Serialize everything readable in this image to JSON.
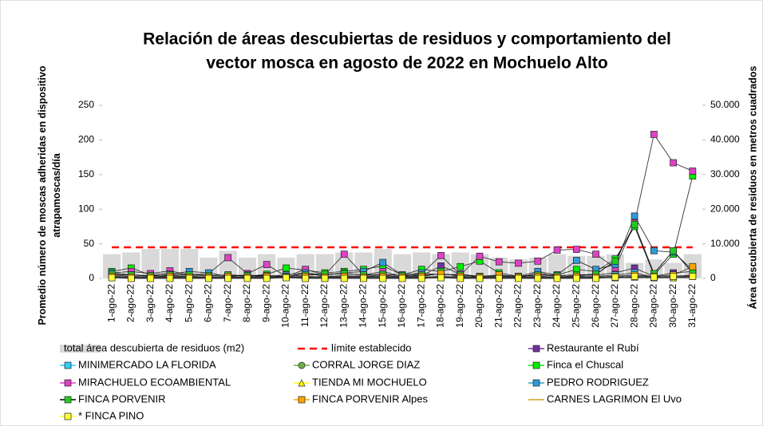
{
  "chart_data": {
    "type": "bar",
    "title": "Relación de áreas descubiertas de residuos y comportamiento del vector mosca en agosto  de 2022 en Mochuelo Alto",
    "y_label": "Promedio número de moscas adheridas en dispositivo atrapamoscas/día",
    "y2_label": "Área descubierta de residuos en metros cuadrados",
    "categories": [
      "1-ago-22",
      "2-ago-22",
      "3-ago-22",
      "4-ago-22",
      "5-ago-22",
      "6-ago-22",
      "7-ago-22",
      "8-ago-22",
      "9-ago-22",
      "10-ago-22",
      "11-ago-22",
      "12-ago-22",
      "13-ago-22",
      "14-ago-22",
      "15-ago-22",
      "16-ago-22",
      "17-ago-22",
      "18-ago-22",
      "19-ago-22",
      "20-ago-22",
      "21-ago-22",
      "22-ago-22",
      "23-ago-22",
      "24-ago-22",
      "25-ago-22",
      "26-ago-22",
      "27-ago-22",
      "28-ago-22",
      "29-ago-22",
      "30-ago-22",
      "31-ago-22"
    ],
    "ylim": [
      0,
      250
    ],
    "yticks": [
      0,
      50,
      100,
      150,
      200,
      250
    ],
    "y2lim": [
      0,
      50000
    ],
    "y2ticks": [
      0,
      {
        "value": 10000,
        "label": "10.000"
      },
      {
        "value": 20000,
        "label": "20.000"
      },
      {
        "value": 30000,
        "label": "30.000"
      },
      {
        "value": 40000,
        "label": "40.000"
      },
      {
        "value": 50000,
        "label": "50.000"
      }
    ],
    "series": [
      {
        "name": "total área descubierta de residuos (m2)",
        "type": "bar",
        "axis": "y2",
        "color": "#d9d9d9",
        "values": [
          7000,
          7500,
          8500,
          8500,
          8500,
          6000,
          8000,
          6000,
          7000,
          6000,
          7000,
          7000,
          7500,
          7500,
          8500,
          7000,
          7500,
          7000,
          7500,
          7000,
          6000,
          5500,
          6000,
          7000,
          6500,
          6500,
          7000,
          4500,
          5500,
          4500,
          7000
        ]
      },
      {
        "name": "límite establecido",
        "type": "line",
        "dash": true,
        "color": "#ff0000",
        "marker": "none",
        "values": [
          45,
          45,
          45,
          45,
          45,
          45,
          45,
          45,
          45,
          45,
          45,
          45,
          45,
          45,
          45,
          45,
          45,
          45,
          45,
          45,
          45,
          45,
          45,
          45,
          45,
          45,
          45,
          45,
          45,
          45,
          45
        ]
      },
      {
        "name": "Restaurante el Rubí",
        "type": "line",
        "color": "#7030a0",
        "marker": "square",
        "values": [
          5,
          3,
          2,
          4,
          3,
          2,
          3,
          2,
          4,
          2,
          8,
          3,
          4,
          3,
          5,
          2,
          4,
          18,
          6,
          2,
          3,
          2,
          3,
          2,
          4,
          5,
          8,
          15,
          3,
          8,
          10
        ]
      },
      {
        "name": "MINIMERCADO LA FLORIDA",
        "type": "line",
        "color": "#33ccff",
        "marker": "square",
        "values": [
          3,
          2,
          1,
          2,
          3,
          2,
          1,
          2,
          3,
          2,
          2,
          3,
          2,
          4,
          2,
          3,
          2,
          3,
          2,
          1,
          2,
          1,
          8,
          3,
          2,
          3,
          5,
          8,
          2,
          3,
          5
        ]
      },
      {
        "name": "CORRAL JORGE DIAZ",
        "type": "line",
        "color": "#70ad47",
        "marker": "circle",
        "values": [
          2,
          1,
          2,
          1,
          2,
          1,
          2,
          1,
          2,
          1,
          3,
          2,
          1,
          2,
          3,
          2,
          1,
          2,
          3,
          1,
          2,
          1,
          2,
          1,
          3,
          2,
          3,
          5,
          2,
          3,
          4
        ]
      },
      {
        "name": "Finca el Chuscal",
        "type": "line",
        "color": "#00ee00",
        "marker": "square",
        "values": [
          10,
          15,
          5,
          8,
          6,
          4,
          5,
          3,
          6,
          15,
          12,
          8,
          10,
          13,
          18,
          5,
          13,
          10,
          17,
          25,
          8,
          3,
          5,
          5,
          13,
          10,
          28,
          75,
          5,
          35,
          148
        ]
      },
      {
        "name": "MIRACHUELO ECOAMBIENTAL",
        "type": "line",
        "color": "#e040c8",
        "marker": "square",
        "values": [
          8,
          10,
          7,
          11,
          5,
          7,
          30,
          7,
          20,
          3,
          13,
          5,
          35,
          5,
          10,
          3,
          7,
          33,
          5,
          32,
          24,
          22,
          25,
          41,
          42,
          35,
          15,
          80,
          208,
          167,
          155
        ]
      },
      {
        "name": "TIENDA MI MOCHUELO",
        "type": "line",
        "color": "#ffff00",
        "marker": "triangle",
        "values": [
          2,
          1,
          1,
          2,
          1,
          1,
          2,
          1,
          1,
          2,
          1,
          1,
          2,
          1,
          1,
          2,
          1,
          1,
          2,
          1,
          1,
          2,
          1,
          1,
          2,
          1,
          1,
          2,
          1,
          1,
          3
        ]
      },
      {
        "name": "PEDRO RODRIGUEZ",
        "type": "line",
        "color": "#2e9bd6",
        "marker": "square",
        "values": [
          8,
          5,
          3,
          6,
          10,
          8,
          3,
          5,
          3,
          5,
          8,
          5,
          8,
          10,
          23,
          5,
          8,
          5,
          6,
          3,
          5,
          3,
          10,
          5,
          26,
          13,
          20,
          90,
          40,
          38,
          12
        ]
      },
      {
        "name": "FINCA PORVENIR",
        "type": "line",
        "color": "#22cc22",
        "line_color": "#000000",
        "marker": "square",
        "values": [
          6,
          5,
          4,
          5,
          5,
          4,
          5,
          4,
          4,
          3,
          5,
          6,
          7,
          5,
          6,
          4,
          5,
          6,
          5,
          3,
          4,
          3,
          5,
          4,
          5,
          6,
          25,
          78,
          7,
          40,
          8
        ]
      },
      {
        "name": "FINCA PORVENIR Alpes",
        "type": "line",
        "color": "#ffa500",
        "marker": "square",
        "values": [
          3,
          2,
          2,
          3,
          2,
          2,
          3,
          2,
          3,
          2,
          3,
          2,
          3,
          2,
          3,
          2,
          3,
          7,
          3,
          2,
          5,
          2,
          3,
          2,
          3,
          2,
          3,
          5,
          3,
          5,
          17
        ]
      },
      {
        "name": "CARNES LAGRIMON El Uvo",
        "type": "line",
        "color": "#c9a227",
        "marker": "none",
        "values": [
          1,
          1,
          1,
          1,
          1,
          1,
          1,
          1,
          1,
          1,
          1,
          1,
          1,
          1,
          1,
          1,
          1,
          1,
          1,
          1,
          1,
          1,
          1,
          1,
          1,
          1,
          1,
          1,
          1,
          1,
          1
        ]
      },
      {
        "name": "* FINCA PINO",
        "type": "line",
        "color": "#ffff33",
        "marker": "square",
        "values": [
          1,
          0,
          0,
          0,
          0,
          0,
          0,
          0,
          0,
          1,
          0,
          0,
          0,
          0,
          0,
          0,
          0,
          1,
          0,
          0,
          0,
          0,
          0,
          0,
          0,
          0,
          2,
          3,
          2,
          3,
          3
        ]
      }
    ]
  }
}
